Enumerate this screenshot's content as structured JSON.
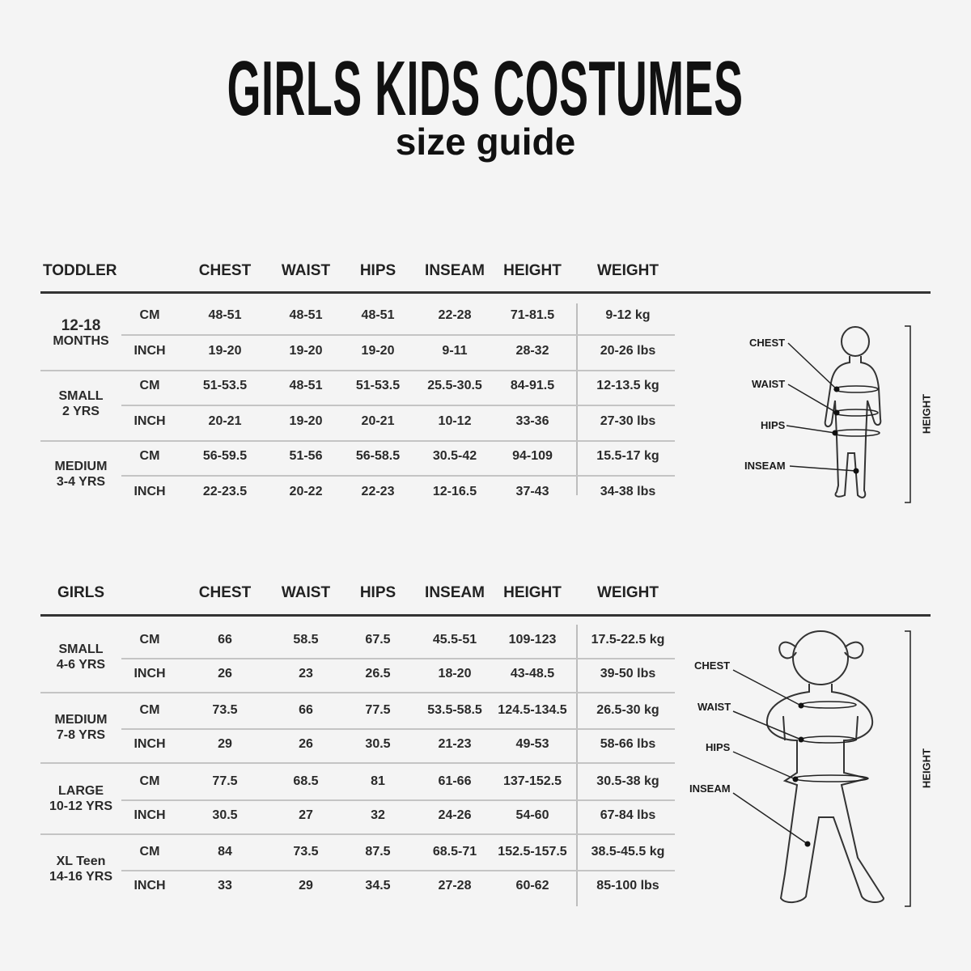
{
  "title": "GIRLS KIDS COSTUMES",
  "subtitle": "size guide",
  "columns": [
    "CHEST",
    "WAIST",
    "HIPS",
    "INSEAM",
    "HEIGHT",
    "WEIGHT"
  ],
  "tables": [
    {
      "name": "TODDLER",
      "groups": [
        {
          "line1": "12-18",
          "line2": "MONTHS",
          "rows": [
            {
              "unit": "CM",
              "values": [
                "48-51",
                "48-51",
                "48-51",
                "22-28",
                "71-81.5",
                "9-12 kg"
              ]
            },
            {
              "unit": "INCH",
              "values": [
                "19-20",
                "19-20",
                "19-20",
                "9-11",
                "28-32",
                "20-26 lbs"
              ]
            }
          ]
        },
        {
          "line1": "SMALL",
          "line2": "2 YRS",
          "rows": [
            {
              "unit": "CM",
              "values": [
                "51-53.5",
                "48-51",
                "51-53.5",
                "25.5-30.5",
                "84-91.5",
                "12-13.5 kg"
              ]
            },
            {
              "unit": "INCH",
              "values": [
                "20-21",
                "19-20",
                "20-21",
                "10-12",
                "33-36",
                "27-30 lbs"
              ]
            }
          ]
        },
        {
          "line1": "MEDIUM",
          "line2": "3-4 YRS",
          "rows": [
            {
              "unit": "CM",
              "values": [
                "56-59.5",
                "51-56",
                "56-58.5",
                "30.5-42",
                "94-109",
                "15.5-17 kg"
              ]
            },
            {
              "unit": "INCH",
              "values": [
                "22-23.5",
                "20-22",
                "22-23",
                "12-16.5",
                "37-43",
                "34-38 lbs"
              ]
            }
          ]
        }
      ],
      "figure": {
        "labels": [
          "CHEST",
          "WAIST",
          "HIPS",
          "INSEAM"
        ],
        "height_label": "HEIGHT"
      }
    },
    {
      "name": "GIRLS",
      "groups": [
        {
          "line1": "SMALL",
          "line2": "4-6 YRS",
          "rows": [
            {
              "unit": "CM",
              "values": [
                "66",
                "58.5",
                "67.5",
                "45.5-51",
                "109-123",
                "17.5-22.5 kg"
              ]
            },
            {
              "unit": "INCH",
              "values": [
                "26",
                "23",
                "26.5",
                "18-20",
                "43-48.5",
                "39-50 lbs"
              ]
            }
          ]
        },
        {
          "line1": "MEDIUM",
          "line2": "7-8 YRS",
          "rows": [
            {
              "unit": "CM",
              "values": [
                "73.5",
                "66",
                "77.5",
                "53.5-58.5",
                "124.5-134.5",
                "26.5-30 kg"
              ]
            },
            {
              "unit": "INCH",
              "values": [
                "29",
                "26",
                "30.5",
                "21-23",
                "49-53",
                "58-66 lbs"
              ]
            }
          ]
        },
        {
          "line1": "LARGE",
          "line2": "10-12 YRS",
          "rows": [
            {
              "unit": "CM",
              "values": [
                "77.5",
                "68.5",
                "81",
                "61-66",
                "137-152.5",
                "30.5-38 kg"
              ]
            },
            {
              "unit": "INCH",
              "values": [
                "30.5",
                "27",
                "32",
                "24-26",
                "54-60",
                "67-84 lbs"
              ]
            }
          ]
        },
        {
          "line1": "XL Teen",
          "line2": "14-16 YRS",
          "rows": [
            {
              "unit": "CM",
              "values": [
                "84",
                "73.5",
                "87.5",
                "68.5-71",
                "152.5-157.5",
                "38.5-45.5 kg"
              ]
            },
            {
              "unit": "INCH",
              "values": [
                "33",
                "29",
                "34.5",
                "27-28",
                "60-62",
                "85-100 lbs"
              ]
            }
          ]
        }
      ],
      "figure": {
        "labels": [
          "CHEST",
          "WAIST",
          "HIPS",
          "INSEAM"
        ],
        "height_label": "HEIGHT"
      }
    }
  ]
}
